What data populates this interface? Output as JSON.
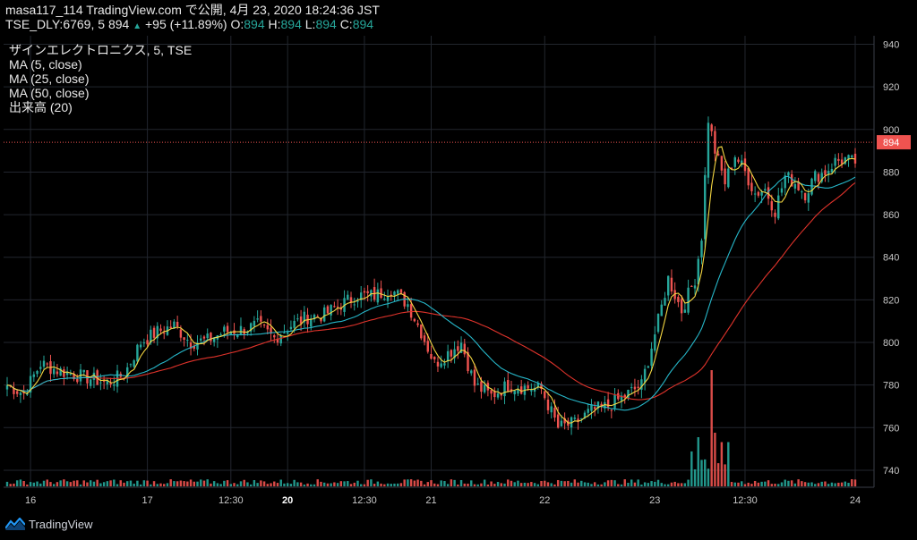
{
  "header": {
    "publish_line": "masa117_114 TradingView.com で公開, 4月 23, 2020 18:24:36 JST",
    "symbol": "TSE_DLY:6769, 5",
    "last": "894",
    "change": "+95 (+11.89%)",
    "o_label": "O:",
    "o_val": "894",
    "h_label": "H:",
    "h_val": "894",
    "l_label": "L:",
    "l_val": "894",
    "c_label": "C:",
    "c_val": "894"
  },
  "legend": {
    "title": "ザインエレクトロニクス, 5, TSE",
    "ma5": "MA (5, close)",
    "ma25": "MA (25, close)",
    "ma50": "MA (50, close)",
    "volume": "出来高 (20)"
  },
  "footer": {
    "brand": "TradingView"
  },
  "colors": {
    "up": "#26a69a",
    "down": "#ef5350",
    "ma5": "#f5d742",
    "ma25": "#26b6c8",
    "ma50": "#e0332b",
    "grid": "#22262e",
    "price_line": "#ef5350",
    "background": "#000000"
  },
  "chart_data": {
    "type": "candlestick",
    "y_ticks": [
      740,
      760,
      780,
      800,
      820,
      840,
      860,
      880,
      900,
      920,
      940
    ],
    "ylim": [
      732,
      944
    ],
    "x_labels": [
      "16",
      "17",
      "12:30",
      "20",
      "12:30",
      "21",
      "22",
      "23",
      "12:30",
      "24"
    ],
    "x_labels_bold": [
      "20"
    ],
    "last_price_label": "894",
    "last_price": 894,
    "grid": true,
    "close_anchors": [
      [
        0,
        780
      ],
      [
        5,
        776
      ],
      [
        10,
        790
      ],
      [
        15,
        787
      ],
      [
        20,
        785
      ],
      [
        25,
        783
      ],
      [
        30,
        781
      ],
      [
        35,
        785
      ],
      [
        40,
        800
      ],
      [
        45,
        805
      ],
      [
        50,
        808
      ],
      [
        55,
        800
      ],
      [
        60,
        801
      ],
      [
        65,
        805
      ],
      [
        70,
        806
      ],
      [
        75,
        808
      ],
      [
        80,
        802
      ],
      [
        85,
        808
      ],
      [
        90,
        812
      ],
      [
        95,
        813
      ],
      [
        100,
        818
      ],
      [
        105,
        822
      ],
      [
        110,
        822
      ],
      [
        115,
        825
      ],
      [
        120,
        818
      ],
      [
        124,
        805
      ],
      [
        128,
        790
      ],
      [
        132,
        795
      ],
      [
        136,
        800
      ],
      [
        140,
        780
      ],
      [
        145,
        775
      ],
      [
        150,
        780
      ],
      [
        155,
        779
      ],
      [
        160,
        778
      ],
      [
        165,
        760
      ],
      [
        170,
        762
      ],
      [
        175,
        768
      ],
      [
        180,
        770
      ],
      [
        185,
        775
      ],
      [
        190,
        780
      ],
      [
        195,
        810
      ],
      [
        198,
        830
      ],
      [
        202,
        815
      ],
      [
        206,
        830
      ],
      [
        208,
        850
      ],
      [
        210,
        905
      ],
      [
        212,
        890
      ],
      [
        215,
        875
      ],
      [
        218,
        888
      ],
      [
        221,
        880
      ],
      [
        224,
        870
      ],
      [
        227,
        872
      ],
      [
        230,
        862
      ],
      [
        233,
        878
      ],
      [
        236,
        875
      ],
      [
        239,
        870
      ],
      [
        242,
        878
      ],
      [
        245,
        880
      ],
      [
        248,
        885
      ],
      [
        251,
        886
      ],
      [
        254,
        884
      ]
    ],
    "bar_count": 255
  }
}
